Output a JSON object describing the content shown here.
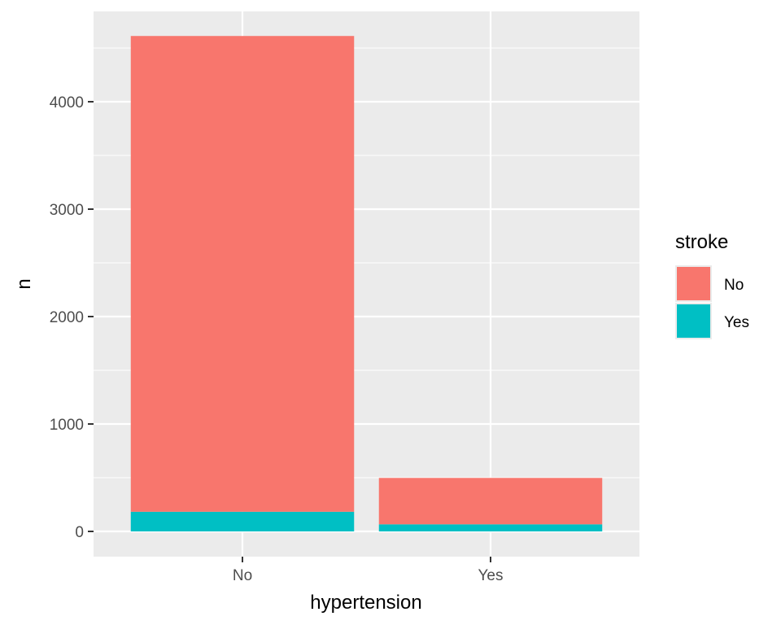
{
  "chart_data": {
    "type": "bar",
    "stacked": true,
    "xlabel": "hypertension",
    "ylabel": "n",
    "categories": [
      "No",
      "Yes"
    ],
    "series": [
      {
        "name": "No",
        "color": "#F8766D",
        "values": [
          4429,
          432
        ]
      },
      {
        "name": "Yes",
        "color": "#00BFC4",
        "values": [
          183,
          66
        ]
      }
    ],
    "yticks": [
      0,
      1000,
      2000,
      3000,
      4000
    ],
    "ytick_labels": [
      "0",
      "1000",
      "2000",
      "3000",
      "4000"
    ],
    "ylim": [
      -235,
      4840
    ],
    "grid": true,
    "legend": {
      "title": "stroke",
      "position": "right",
      "entries": [
        "No",
        "Yes"
      ]
    }
  }
}
